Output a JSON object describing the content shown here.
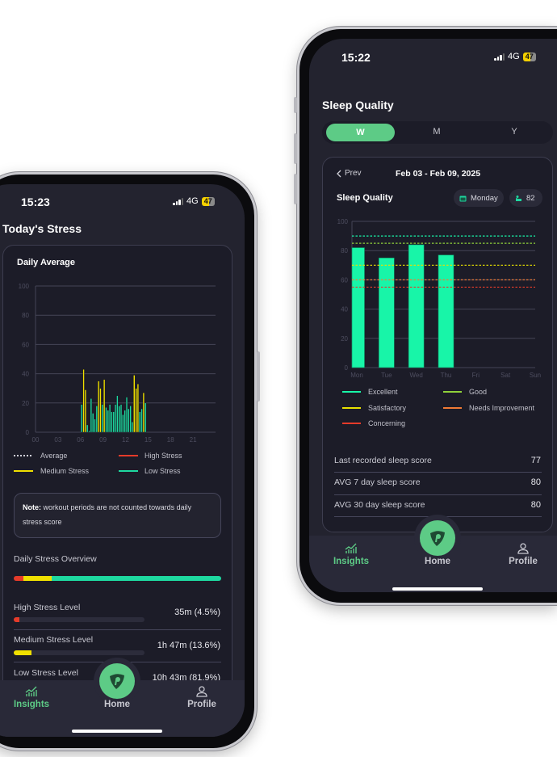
{
  "colors": {
    "accent": "#5dcb86",
    "low": "#1ed8a0",
    "medium": "#f0e000",
    "high": "#e53b2a",
    "excellent": "#18f5a8",
    "good": "#8fd13a",
    "satisfactory": "#e8e000",
    "needs_improvement": "#f07a35",
    "concerning": "#e53b2a",
    "average": "#d0d0d8"
  },
  "left_phone": {
    "status": {
      "time": "15:23",
      "network": "4G",
      "battery": "47"
    },
    "title": "Today's Stress",
    "card_title": "Daily Average",
    "legend": [
      {
        "label": "Average",
        "style": "dashed",
        "color": "#d0d0d8"
      },
      {
        "label": "High Stress",
        "color": "#e53b2a"
      },
      {
        "label": "Medium Stress",
        "color": "#f0e000"
      },
      {
        "label": "Low Stress",
        "color": "#1ed8a0"
      }
    ],
    "note": {
      "bold": "Note:",
      "text": " workout periods are not counted towards daily stress score"
    },
    "overview": {
      "label": "Daily Stress Overview",
      "segments": [
        {
          "level": "high",
          "percent": 4.5
        },
        {
          "level": "medium",
          "percent": 13.6
        },
        {
          "level": "low",
          "percent": 81.9
        }
      ]
    },
    "levels": [
      {
        "label": "High Stress Level",
        "value": "35m (4.5%)",
        "percent": 4.5,
        "color": "#e53b2a"
      },
      {
        "label": "Medium Stress Level",
        "value": "1h 47m (13.6%)",
        "percent": 13.6,
        "color": "#f0e000"
      },
      {
        "label": "Low Stress Level",
        "value": "10h 43m (81.9%)",
        "percent": 81.9,
        "color": "#1ed8a0"
      }
    ],
    "tabs": [
      {
        "label": "Insights",
        "icon": "chart-icon",
        "active": true
      },
      {
        "label": "Home",
        "icon": "logo-icon"
      },
      {
        "label": "Profile",
        "icon": "person-icon"
      }
    ]
  },
  "right_phone": {
    "status": {
      "time": "15:22",
      "network": "4G",
      "battery": "47"
    },
    "title": "Sleep Quality",
    "segments": [
      {
        "label": "W",
        "active": true
      },
      {
        "label": "M"
      },
      {
        "label": "Y"
      }
    ],
    "prev_label": "Prev",
    "date_range": "Feb 03 - Feb 09, 2025",
    "card_title": "Sleep Quality",
    "day_pill": "Monday",
    "score_pill": "82",
    "legend": [
      {
        "label": "Excellent",
        "color": "#18f5a8"
      },
      {
        "label": "Good",
        "color": "#8fd13a"
      },
      {
        "label": "Satisfactory",
        "color": "#e8e000"
      },
      {
        "label": "Needs Improvement",
        "color": "#f07a35"
      },
      {
        "label": "Concerning",
        "color": "#e53b2a"
      }
    ],
    "stats": [
      {
        "label": "Last recorded sleep score",
        "value": "77"
      },
      {
        "label": "AVG 7 day sleep score",
        "value": "80"
      },
      {
        "label": "AVG 30 day sleep score",
        "value": "80"
      }
    ],
    "tabs": [
      {
        "label": "Insights",
        "icon": "chart-icon",
        "active": true
      },
      {
        "label": "Home",
        "icon": "logo-icon"
      },
      {
        "label": "Profile",
        "icon": "person-icon"
      }
    ]
  },
  "chart_data": [
    {
      "type": "bar",
      "title": "Daily Average",
      "xlim_hours": [
        0,
        24
      ],
      "x_tick_labels": [
        "00",
        "03",
        "06",
        "09",
        "12",
        "15",
        "18",
        "21"
      ],
      "ylim": [
        0,
        100
      ],
      "y_ticks": [
        0,
        20,
        40,
        60,
        80,
        100
      ],
      "grid": true,
      "legend_position": "bottom",
      "times": [
        "06:00",
        "06:15",
        "06:30",
        "06:45",
        "07:00",
        "07:15",
        "07:30",
        "07:45",
        "08:00",
        "08:15",
        "08:30",
        "08:45",
        "09:00",
        "09:15",
        "09:30",
        "09:45",
        "10:00",
        "10:15",
        "10:30",
        "10:45",
        "11:00",
        "11:15",
        "11:30",
        "11:45",
        "12:00",
        "12:15",
        "12:30",
        "12:45",
        "13:00",
        "13:15",
        "13:30",
        "13:45",
        "14:00",
        "14:15",
        "14:30"
      ],
      "values": [
        19,
        43,
        29,
        5,
        1,
        23,
        13,
        9,
        18,
        35,
        30,
        19,
        36,
        17,
        15,
        19,
        14,
        14,
        19,
        25,
        18,
        19,
        12,
        15,
        24,
        16,
        18,
        7,
        39,
        30,
        33,
        14,
        16,
        27,
        20
      ],
      "levels": [
        "low",
        "medium",
        "medium",
        "low",
        "low",
        "low",
        "low",
        "low",
        "low",
        "medium",
        "medium",
        "low",
        "medium",
        "low",
        "low",
        "low",
        "low",
        "low",
        "low",
        "low",
        "low",
        "low",
        "low",
        "low",
        "low",
        "low",
        "low",
        "low",
        "medium",
        "medium",
        "medium",
        "low",
        "low",
        "medium",
        "low"
      ]
    },
    {
      "type": "bar",
      "title": "Sleep Quality",
      "categories": [
        "Mon",
        "Tue",
        "Wed",
        "Thu",
        "Fri",
        "Sat",
        "Sun"
      ],
      "values": [
        82,
        75,
        84,
        77,
        null,
        null,
        null
      ],
      "ylim": [
        0,
        100
      ],
      "y_ticks": [
        0,
        20,
        40,
        60,
        80,
        100
      ],
      "grid": true,
      "legend_position": "bottom",
      "thresholds": [
        {
          "name": "Excellent",
          "value": 90
        },
        {
          "name": "Good",
          "value": 85
        },
        {
          "name": "Satisfactory",
          "value": 70
        },
        {
          "name": "Needs Improvement",
          "value": 60
        },
        {
          "name": "Concerning",
          "value": 55
        }
      ]
    }
  ]
}
